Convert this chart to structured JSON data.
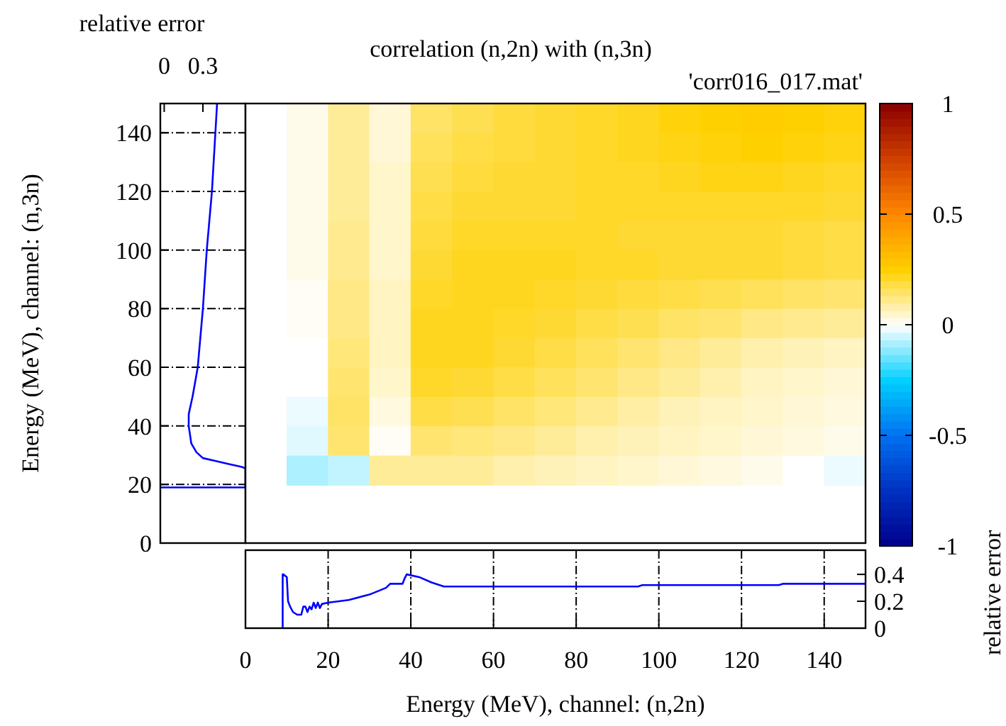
{
  "chart_data": [
    {
      "type": "line",
      "xlabel": "relative error",
      "ylabel": "Energy (MeV), channel: (n,3n)",
      "xlim": [
        -0.03,
        0.63
      ],
      "xticks": [
        0,
        0.3
      ],
      "ylim": [
        0,
        150
      ],
      "yticks": [
        0,
        20,
        40,
        60,
        80,
        100,
        120,
        140
      ],
      "grid": "y",
      "series": [
        {
          "color": "#0000ff",
          "x": [
            -0.03,
            0.63,
            0.63,
            0.6,
            0.5,
            0.4,
            0.3,
            0.25,
            0.21,
            0.2,
            0.19,
            0.19,
            0.22,
            0.24,
            0.26,
            0.28,
            0.3,
            0.33,
            0.35,
            0.37,
            0.39,
            0.41
          ],
          "values": [
            19,
            19,
            25.5,
            26,
            27,
            28,
            29,
            31,
            34,
            37,
            40,
            44,
            50,
            55,
            60,
            70,
            80,
            100,
            110,
            120,
            135,
            150
          ]
        }
      ]
    },
    {
      "type": "heatmap",
      "title": "correlation (n,2n) with (n,3n)",
      "subtitle": "'corr016_017.mat'",
      "categories": [
        null,
        null,
        null,
        null,
        null,
        null,
        null,
        null,
        null,
        null,
        null,
        null,
        null,
        null
      ],
      "y_categories": [
        null,
        null,
        null,
        null,
        null,
        null,
        null,
        null,
        null,
        null,
        null,
        null,
        null
      ],
      "clim": [
        -1,
        1
      ],
      "cticks": [
        -1,
        -0.5,
        0,
        0.5,
        1
      ],
      "cells": [
        [
          0.02,
          0.1,
          0.04,
          0.15,
          0.17,
          0.19,
          0.2,
          0.21,
          0.22,
          0.24,
          0.25,
          0.26,
          0.25,
          0.24
        ],
        [
          0.02,
          0.1,
          0.04,
          0.16,
          0.18,
          0.19,
          0.2,
          0.21,
          0.22,
          0.23,
          0.24,
          0.25,
          0.24,
          0.23
        ],
        [
          0.02,
          0.1,
          0.05,
          0.17,
          0.19,
          0.2,
          0.2,
          0.21,
          0.21,
          0.22,
          0.23,
          0.23,
          0.22,
          0.21
        ],
        [
          0.02,
          0.1,
          0.05,
          0.18,
          0.2,
          0.2,
          0.2,
          0.21,
          0.21,
          0.21,
          0.21,
          0.21,
          0.21,
          0.2
        ],
        [
          0.02,
          0.11,
          0.05,
          0.19,
          0.21,
          0.21,
          0.21,
          0.21,
          0.2,
          0.2,
          0.2,
          0.2,
          0.19,
          0.18
        ],
        [
          0.02,
          0.11,
          0.05,
          0.2,
          0.22,
          0.22,
          0.22,
          0.21,
          0.21,
          0.2,
          0.2,
          0.2,
          0.19,
          0.18
        ],
        [
          0.01,
          0.12,
          0.06,
          0.21,
          0.22,
          0.22,
          0.21,
          0.2,
          0.19,
          0.18,
          0.17,
          0.16,
          0.15,
          0.14
        ],
        [
          0.01,
          0.12,
          0.06,
          0.22,
          0.22,
          0.21,
          0.2,
          0.18,
          0.17,
          0.15,
          0.14,
          0.12,
          0.11,
          0.1
        ],
        [
          0.0,
          0.13,
          0.06,
          0.22,
          0.22,
          0.2,
          0.18,
          0.16,
          0.14,
          0.12,
          0.1,
          0.08,
          0.07,
          0.06
        ],
        [
          0.0,
          0.14,
          0.05,
          0.21,
          0.2,
          0.18,
          0.16,
          0.14,
          0.12,
          0.1,
          0.08,
          0.06,
          0.05,
          0.04
        ],
        [
          -0.02,
          0.15,
          0.03,
          0.18,
          0.17,
          0.15,
          0.13,
          0.11,
          0.09,
          0.07,
          0.06,
          0.05,
          0.04,
          0.03
        ],
        [
          -0.03,
          0.14,
          0.01,
          0.14,
          0.13,
          0.12,
          0.1,
          0.08,
          0.07,
          0.06,
          0.05,
          0.04,
          0.03,
          0.02
        ],
        [
          -0.08,
          -0.06,
          0.1,
          0.1,
          0.1,
          0.08,
          0.07,
          0.06,
          0.05,
          0.04,
          0.03,
          0.02,
          0.0,
          -0.02
        ]
      ]
    },
    {
      "type": "line",
      "xlabel": "Energy (MeV), channel: (n,2n)",
      "y2label": "relative error",
      "xlim": [
        0,
        150
      ],
      "xticks": [
        0,
        20,
        40,
        60,
        80,
        100,
        120,
        140
      ],
      "y2lim": [
        0,
        0.58
      ],
      "y2ticks": [
        0,
        0.2,
        0.4
      ],
      "grid": "x",
      "series": [
        {
          "color": "#0000ff",
          "axis": "y2",
          "x": [
            9,
            9,
            9.2,
            10,
            10.3,
            10.8,
            11.5,
            12.5,
            13.5,
            14,
            14.5,
            15,
            15.5,
            16,
            16.5,
            17,
            17.5,
            18,
            18.5,
            20,
            25,
            30,
            34,
            35,
            38,
            38.5,
            39,
            42,
            45,
            48,
            95,
            96,
            129,
            130,
            150
          ],
          "values": [
            0,
            0.4,
            0.4,
            0.38,
            0.2,
            0.16,
            0.12,
            0.1,
            0.1,
            0.16,
            0.16,
            0.12,
            0.16,
            0.14,
            0.19,
            0.15,
            0.19,
            0.15,
            0.18,
            0.19,
            0.21,
            0.25,
            0.3,
            0.33,
            0.33,
            0.37,
            0.4,
            0.38,
            0.34,
            0.31,
            0.31,
            0.32,
            0.32,
            0.33,
            0.33
          ]
        }
      ]
    }
  ]
}
